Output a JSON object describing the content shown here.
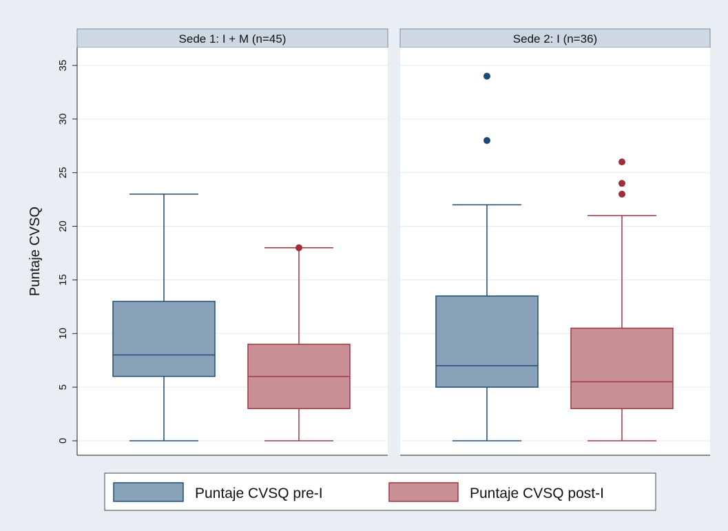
{
  "chart_data": {
    "type": "box",
    "ylabel": "Puntaje CVSQ",
    "ylim": [
      0,
      35
    ],
    "yticks": [
      0,
      5,
      10,
      15,
      20,
      25,
      30,
      35
    ],
    "grid": true,
    "legend_position": "bottom",
    "series": [
      {
        "name": "Puntaje CVSQ pre-I",
        "fill": "#8aa2b8",
        "stroke": "#1e4b73",
        "dot": "#1b4a7a"
      },
      {
        "name": "Puntaje CVSQ post-I",
        "fill": "#c99196",
        "stroke": "#a3343f",
        "dot": "#a02e3a"
      }
    ],
    "panels": [
      {
        "title": "Sede 1: I + M (n=45)",
        "boxes": [
          {
            "series": 0,
            "whisker_low": 0,
            "q1": 6,
            "median": 8,
            "q3": 13,
            "whisker_high": 23,
            "outliers": []
          },
          {
            "series": 1,
            "whisker_low": 0,
            "q1": 3,
            "median": 6,
            "q3": 9,
            "whisker_high": 18,
            "outliers": [
              18
            ]
          }
        ]
      },
      {
        "title": "Sede 2: I (n=36)",
        "boxes": [
          {
            "series": 0,
            "whisker_low": 0,
            "q1": 5,
            "median": 7,
            "q3": 13.5,
            "whisker_high": 22,
            "outliers": [
              28,
              34
            ]
          },
          {
            "series": 1,
            "whisker_low": 0,
            "q1": 3,
            "median": 5.5,
            "q3": 10.5,
            "whisker_high": 21,
            "outliers": [
              23,
              24,
              26
            ]
          }
        ]
      }
    ]
  }
}
